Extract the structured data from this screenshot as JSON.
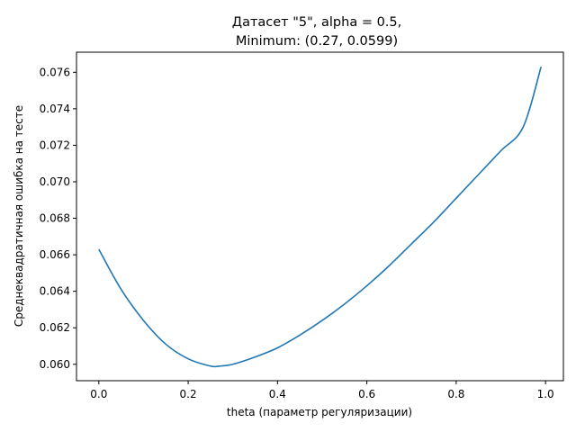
{
  "chart_data": {
    "type": "line",
    "title_line1": "Датасет \"5\", alpha = 0.5,",
    "title_line2": "Minimum: (0.27, 0.0599)",
    "xlabel": "theta (параметр регуляризации)",
    "ylabel": "Среднеквадратичная ошибка на тесте",
    "xlim": [
      -0.05,
      1.04
    ],
    "ylim": [
      0.0591,
      0.0771
    ],
    "x_ticks": [
      0.0,
      0.2,
      0.4,
      0.6,
      0.8,
      1.0
    ],
    "x_tick_labels": [
      "0.0",
      "0.2",
      "0.4",
      "0.6",
      "0.8",
      "1.0"
    ],
    "y_ticks": [
      0.06,
      0.062,
      0.064,
      0.066,
      0.068,
      0.07,
      0.072,
      0.074,
      0.076
    ],
    "y_tick_labels": [
      "0.060",
      "0.062",
      "0.064",
      "0.066",
      "0.068",
      "0.070",
      "0.072",
      "0.074",
      "0.076"
    ],
    "grid": false,
    "line_color": "#1f77b4",
    "series": [
      {
        "x": [
          0.0,
          0.05,
          0.1,
          0.15,
          0.2,
          0.25,
          0.27,
          0.3,
          0.35,
          0.4,
          0.45,
          0.5,
          0.55,
          0.6,
          0.65,
          0.7,
          0.75,
          0.8,
          0.85,
          0.9,
          0.95,
          0.99
        ],
        "y": [
          0.0663,
          0.0641,
          0.0624,
          0.0611,
          0.0603,
          0.0599,
          0.0599,
          0.06,
          0.0604,
          0.0609,
          0.0616,
          0.0624,
          0.0633,
          0.0643,
          0.0654,
          0.0666,
          0.0678,
          0.0691,
          0.0704,
          0.0717,
          0.073,
          0.0763
        ]
      }
    ]
  }
}
